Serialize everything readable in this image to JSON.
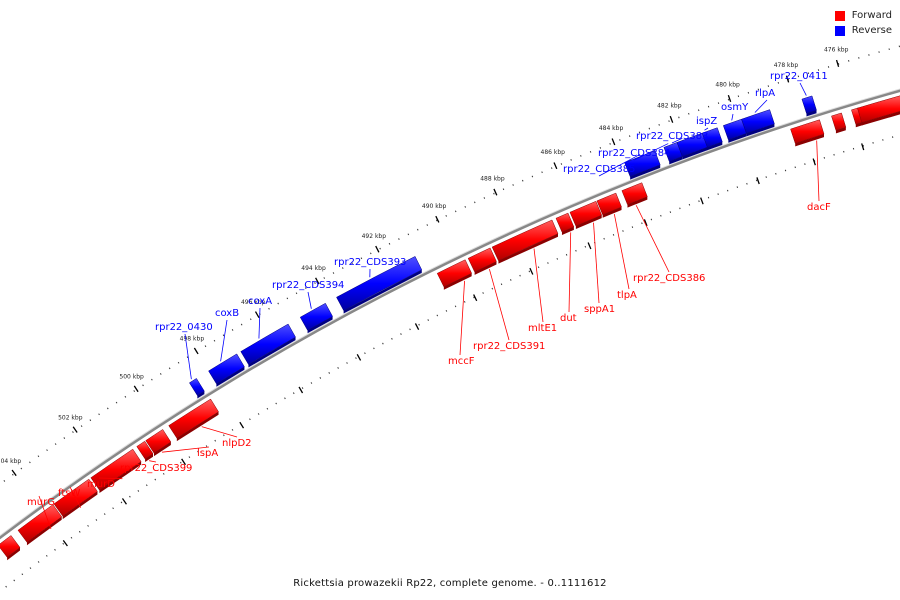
{
  "legend": [
    {
      "label": "Forward",
      "color": "#ff0000"
    },
    {
      "label": "Reverse",
      "color": "#0000ff"
    }
  ],
  "caption": "Rickettsia prowazekii Rp22, complete genome. - 0..1111612",
  "colors": {
    "forward": "#ff0000",
    "reverse": "#0000ff",
    "backbone": "#777777",
    "ruler": "#222222"
  },
  "ticks": [
    "476 kbp",
    "478 kbp",
    "480 kbp",
    "482 kbp",
    "484 kbp",
    "486 kbp",
    "488 kbp",
    "490 kbp",
    "492 kbp",
    "494 kbp",
    "496 kbp",
    "498 kbp",
    "500 kbp",
    "502 kbp",
    "504 kbp"
  ],
  "genes": {
    "reverse": [
      "rpr22_0411",
      "rlpA",
      "osmY",
      "ispZ",
      "rpr22_CDS383",
      "rpr22_CDS384",
      "rpr22_CDS385",
      "rpr22_CDS393",
      "rpr22_CDS394",
      "coxA",
      "coxB",
      "rpr22_0430"
    ],
    "forward": [
      "dacF",
      "rpr22_CDS386",
      "tlpA",
      "sppA1",
      "dut",
      "mltE1",
      "rpr22_CDS391",
      "mccF",
      "nlpD2",
      "lspA",
      "rpr22_CDS399",
      "murD",
      "ftsW",
      "murG"
    ]
  }
}
